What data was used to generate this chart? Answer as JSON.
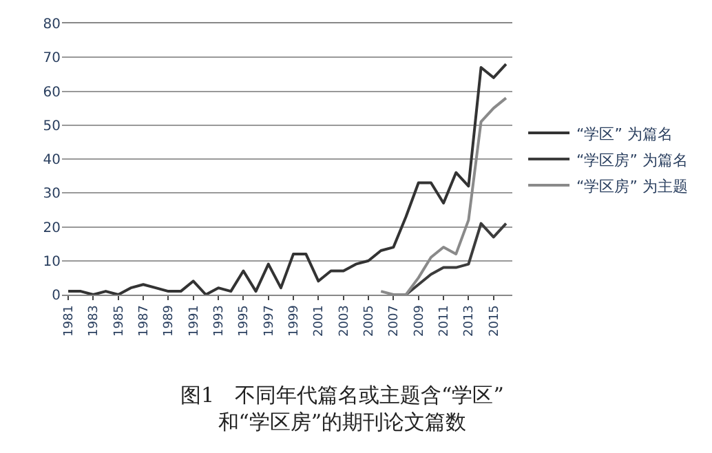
{
  "chart_data": {
    "type": "line",
    "title": "图1　不同年代篇名或主题含“学区”\n和“学区房”的期刊论文篇数",
    "categories": [
      "1981",
      null,
      "1983",
      null,
      "1985",
      null,
      "1987",
      null,
      "1989",
      null,
      "1991",
      null,
      "1993",
      null,
      "1995",
      null,
      "1997",
      null,
      "1999",
      null,
      "2001",
      null,
      "2003",
      null,
      "2005",
      null,
      "2007",
      null,
      "2009",
      null,
      "2011",
      null,
      "2013",
      null,
      "2015",
      null
    ],
    "series": [
      {
        "name": "“学区” 为篇名",
        "color": "#333333",
        "values": [
          1,
          1,
          0,
          1,
          0,
          2,
          3,
          2,
          1,
          1,
          4,
          0,
          2,
          1,
          7,
          1,
          9,
          2,
          12,
          12,
          4,
          7,
          7,
          9,
          10,
          13,
          14,
          23,
          33,
          33,
          27,
          36,
          32,
          67,
          64,
          68
        ]
      },
      {
        "name": "“学区房” 为篇名",
        "color": "#3c3c3c",
        "values": [
          null,
          null,
          null,
          null,
          null,
          null,
          null,
          null,
          null,
          null,
          null,
          null,
          null,
          null,
          null,
          null,
          null,
          null,
          null,
          null,
          null,
          null,
          null,
          null,
          null,
          null,
          null,
          0,
          3,
          6,
          8,
          8,
          9,
          21,
          17,
          21
        ]
      },
      {
        "name": "“学区房” 为主题",
        "color": "#8a8a8a",
        "values": [
          null,
          null,
          null,
          null,
          null,
          null,
          null,
          null,
          null,
          null,
          null,
          null,
          null,
          null,
          null,
          null,
          null,
          null,
          null,
          null,
          null,
          null,
          null,
          null,
          null,
          1,
          0,
          0,
          5,
          11,
          14,
          12,
          22,
          51,
          55,
          58
        ]
      }
    ],
    "ylim": [
      0,
      80
    ],
    "yticks": [
      0,
      10,
      20,
      30,
      40,
      50,
      60,
      70,
      80
    ],
    "grid": "y",
    "legend": "right",
    "marker": "none",
    "line_style": "solid"
  }
}
